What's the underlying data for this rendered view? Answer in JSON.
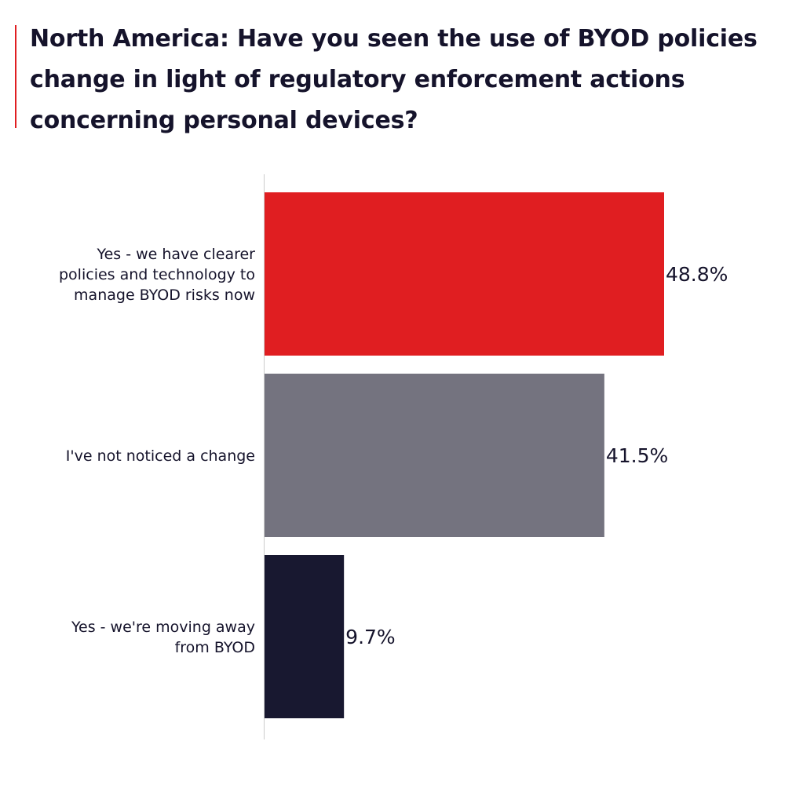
{
  "title": "North America: Have you seen the use of BYOD policies change in light of regulatory enforcement actions concerning personal devices?",
  "colors": {
    "accent": "#e01e21",
    "axis": "#cccccc",
    "text": "#15132b"
  },
  "chart_data": {
    "type": "bar",
    "orientation": "horizontal",
    "title": "North America: Have you seen the use of BYOD policies change in light of regulatory enforcement actions concerning personal devices?",
    "categories": [
      "Yes - we have clearer policies and technology to manage BYOD risks now",
      "I've not noticed a change",
      "Yes - we're moving away from BYOD"
    ],
    "category_lines": [
      [
        "Yes - we have clearer",
        "policies and technology to",
        "manage BYOD risks now"
      ],
      [
        "I've not noticed a change"
      ],
      [
        "Yes - we're moving away",
        "from BYOD"
      ]
    ],
    "values": [
      48.8,
      41.5,
      9.7
    ],
    "value_labels": [
      "48.8%",
      "41.5%",
      "9.7%"
    ],
    "bar_colors": [
      "#e01e21",
      "#74737f",
      "#181830"
    ],
    "xlim": [
      0,
      48.8
    ],
    "grid": false,
    "legend": "none"
  }
}
